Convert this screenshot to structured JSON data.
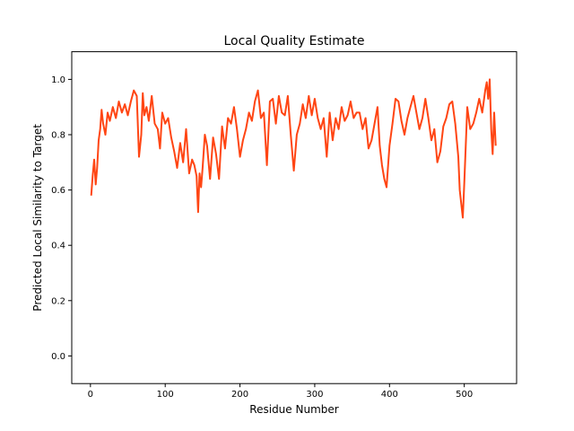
{
  "chart_data": {
    "type": "line",
    "title": "Local Quality Estimate",
    "xlabel": "Residue Number",
    "ylabel": "Predicted Local Similarity to Target",
    "xlim": [
      -25,
      570
    ],
    "ylim": [
      -0.1,
      1.1
    ],
    "x_ticks": [
      0,
      100,
      200,
      300,
      400,
      500
    ],
    "y_ticks": [
      0.0,
      0.2,
      0.4,
      0.6,
      0.8,
      1.0
    ],
    "x_tick_labels": [
      "0",
      "100",
      "200",
      "300",
      "400",
      "500"
    ],
    "y_tick_labels": [
      "0.0",
      "0.2",
      "0.4",
      "0.6",
      "0.8",
      "1.0"
    ],
    "grid": false,
    "legend": "none",
    "series": [
      {
        "color": "#FF4513",
        "x": [
          1,
          3,
          5,
          7,
          9,
          11,
          13,
          15,
          17,
          20,
          23,
          26,
          30,
          34,
          38,
          42,
          46,
          50,
          54,
          58,
          62,
          65,
          68,
          70,
          72,
          75,
          78,
          82,
          86,
          90,
          93,
          96,
          100,
          104,
          108,
          112,
          116,
          120,
          124,
          128,
          132,
          136,
          139,
          142,
          144,
          146,
          148,
          150,
          153,
          156,
          160,
          164,
          168,
          172,
          176,
          180,
          184,
          188,
          192,
          196,
          200,
          204,
          208,
          212,
          216,
          220,
          224,
          228,
          232,
          236,
          240,
          244,
          248,
          252,
          256,
          260,
          264,
          268,
          272,
          276,
          280,
          284,
          288,
          292,
          296,
          300,
          304,
          308,
          312,
          316,
          320,
          324,
          328,
          332,
          336,
          340,
          344,
          348,
          352,
          356,
          360,
          364,
          368,
          372,
          376,
          380,
          384,
          387,
          390,
          393,
          396,
          400,
          404,
          408,
          412,
          416,
          420,
          424,
          428,
          432,
          436,
          440,
          444,
          448,
          452,
          456,
          460,
          464,
          468,
          472,
          476,
          480,
          484,
          488,
          492,
          494,
          496,
          498,
          500,
          504,
          508,
          512,
          516,
          520,
          524,
          528,
          530,
          532,
          534,
          536,
          538,
          540,
          542
        ],
        "y": [
          0.58,
          0.65,
          0.71,
          0.62,
          0.68,
          0.78,
          0.82,
          0.89,
          0.84,
          0.8,
          0.88,
          0.85,
          0.9,
          0.86,
          0.92,
          0.88,
          0.91,
          0.87,
          0.92,
          0.96,
          0.94,
          0.72,
          0.8,
          0.95,
          0.87,
          0.9,
          0.85,
          0.94,
          0.84,
          0.82,
          0.75,
          0.88,
          0.84,
          0.86,
          0.79,
          0.74,
          0.68,
          0.77,
          0.7,
          0.82,
          0.66,
          0.71,
          0.69,
          0.65,
          0.52,
          0.66,
          0.61,
          0.68,
          0.8,
          0.76,
          0.64,
          0.79,
          0.73,
          0.64,
          0.83,
          0.75,
          0.86,
          0.84,
          0.9,
          0.82,
          0.72,
          0.78,
          0.82,
          0.88,
          0.85,
          0.92,
          0.96,
          0.86,
          0.88,
          0.69,
          0.92,
          0.93,
          0.84,
          0.94,
          0.88,
          0.87,
          0.94,
          0.8,
          0.67,
          0.8,
          0.84,
          0.91,
          0.86,
          0.94,
          0.87,
          0.93,
          0.86,
          0.82,
          0.86,
          0.72,
          0.88,
          0.78,
          0.86,
          0.82,
          0.9,
          0.85,
          0.87,
          0.92,
          0.86,
          0.88,
          0.88,
          0.82,
          0.86,
          0.75,
          0.78,
          0.84,
          0.9,
          0.76,
          0.69,
          0.64,
          0.61,
          0.76,
          0.84,
          0.93,
          0.92,
          0.85,
          0.8,
          0.86,
          0.9,
          0.94,
          0.88,
          0.82,
          0.86,
          0.93,
          0.86,
          0.78,
          0.82,
          0.7,
          0.74,
          0.83,
          0.86,
          0.91,
          0.92,
          0.84,
          0.72,
          0.6,
          0.55,
          0.5,
          0.62,
          0.9,
          0.82,
          0.84,
          0.88,
          0.93,
          0.88,
          0.96,
          0.99,
          0.93,
          1.0,
          0.82,
          0.73,
          0.88,
          0.76
        ]
      }
    ]
  }
}
